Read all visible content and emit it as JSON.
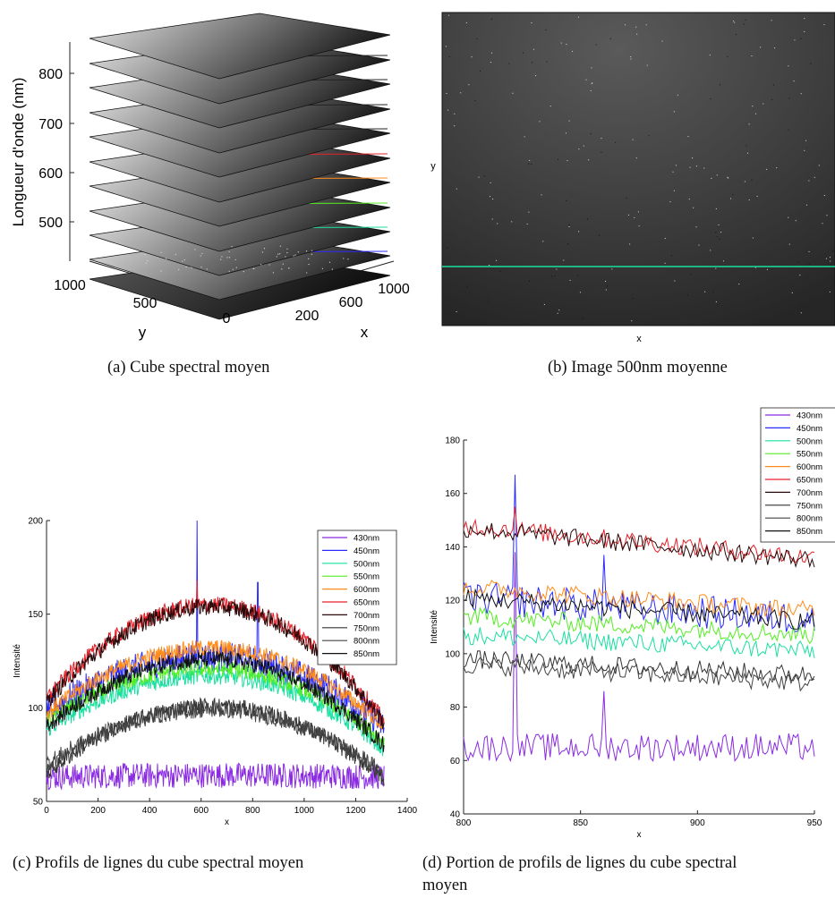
{
  "captions": {
    "a": "(a) Cube spectral moyen",
    "b": "(b) Image 500nm moyenne",
    "c": "(c) Profils de lignes du cube spectral moyen",
    "d1": "(d) Portion de profils de lignes du cube spectral",
    "d2": "moyen"
  },
  "colors": {
    "430nm": "#8a2be2",
    "450nm": "#2b2bff",
    "500nm": "#19e0a0",
    "550nm": "#55ee22",
    "600nm": "#ff8c1a",
    "650nm": "#e8202a",
    "700nm": "#2a0a0a",
    "750nm": "#333333",
    "800nm": "#444444",
    "850nm": "#111111"
  },
  "chart_data": [
    {
      "id": "a",
      "type": "other",
      "title": "",
      "zlabel": "Longueur d'onde (nm)",
      "xlabel": "x",
      "ylabel": "y",
      "z_ticks": [
        "500",
        "600",
        "700",
        "800"
      ],
      "x_ticks": [
        "200",
        "600",
        "1000"
      ],
      "y_ticks": [
        "1000",
        "500",
        "0"
      ],
      "slice_line_colors": [
        "#2b2bff",
        "#19e0a0",
        "#55ee22",
        "#ff8c1a",
        "#e8202a",
        "#222222",
        "#222222",
        "#222222",
        "#222222"
      ]
    },
    {
      "id": "b",
      "type": "other",
      "xlabel": "x",
      "ylabel": "y",
      "line_color": "#19e0a0"
    },
    {
      "id": "c",
      "type": "line",
      "xlabel": "x",
      "ylabel": "Intensité",
      "xlim": [
        0,
        1400
      ],
      "ylim": [
        50,
        200
      ],
      "x_ticks": [
        "0",
        "200",
        "400",
        "600",
        "800",
        "1000",
        "1200",
        "1400"
      ],
      "y_ticks": [
        "50",
        "100",
        "150",
        "200"
      ],
      "legend_position": "top-right",
      "series": [
        {
          "name": "430nm",
          "start": 63,
          "peak": 64,
          "end": 63
        },
        {
          "name": "450nm",
          "start": 98,
          "peak": 127,
          "end": 90
        },
        {
          "name": "500nm",
          "start": 88,
          "peak": 117,
          "end": 78
        },
        {
          "name": "550nm",
          "start": 93,
          "peak": 121,
          "end": 82
        },
        {
          "name": "600nm",
          "start": 97,
          "peak": 132,
          "end": 90
        },
        {
          "name": "650nm",
          "start": 105,
          "peak": 155,
          "end": 93
        },
        {
          "name": "700nm",
          "start": 103,
          "peak": 154,
          "end": 92
        },
        {
          "name": "750nm",
          "start": 65,
          "peak": 101,
          "end": 62
        },
        {
          "name": "800nm",
          "start": 70,
          "peak": 99,
          "end": 65
        },
        {
          "name": "850nm",
          "start": 90,
          "peak": 126,
          "end": 80
        }
      ],
      "spikes": [
        {
          "x": 585,
          "series": "450nm",
          "value": 200
        },
        {
          "x": 585,
          "series": "650nm",
          "value": 168
        },
        {
          "x": 820,
          "series": "450nm",
          "value": 167
        }
      ]
    },
    {
      "id": "d",
      "type": "line",
      "xlabel": "x",
      "ylabel": "Intensité",
      "xlim": [
        800,
        950
      ],
      "ylim": [
        40,
        180
      ],
      "x_ticks": [
        "800",
        "850",
        "900",
        "950"
      ],
      "y_ticks": [
        "40",
        "60",
        "80",
        "100",
        "120",
        "140",
        "160",
        "180"
      ],
      "legend_position": "top-right",
      "series": [
        {
          "name": "430nm",
          "start": 65,
          "end": 65
        },
        {
          "name": "450nm",
          "start": 121,
          "end": 113
        },
        {
          "name": "500nm",
          "start": 107,
          "end": 101
        },
        {
          "name": "550nm",
          "start": 114,
          "end": 107
        },
        {
          "name": "600nm",
          "start": 125,
          "end": 116
        },
        {
          "name": "650nm",
          "start": 148,
          "end": 136
        },
        {
          "name": "700nm",
          "start": 147,
          "end": 135
        },
        {
          "name": "750nm",
          "start": 98,
          "end": 92
        },
        {
          "name": "800nm",
          "start": 96,
          "end": 89
        },
        {
          "name": "850nm",
          "start": 121,
          "end": 112
        }
      ],
      "spikes": [
        {
          "x": 822,
          "series": "450nm",
          "value": 167
        },
        {
          "x": 822,
          "series": "430nm",
          "value": 138
        },
        {
          "x": 822,
          "series": "650nm",
          "value": 155
        },
        {
          "x": 860,
          "series": "430nm",
          "value": 86
        },
        {
          "x": 860,
          "series": "450nm",
          "value": 137
        }
      ]
    }
  ]
}
